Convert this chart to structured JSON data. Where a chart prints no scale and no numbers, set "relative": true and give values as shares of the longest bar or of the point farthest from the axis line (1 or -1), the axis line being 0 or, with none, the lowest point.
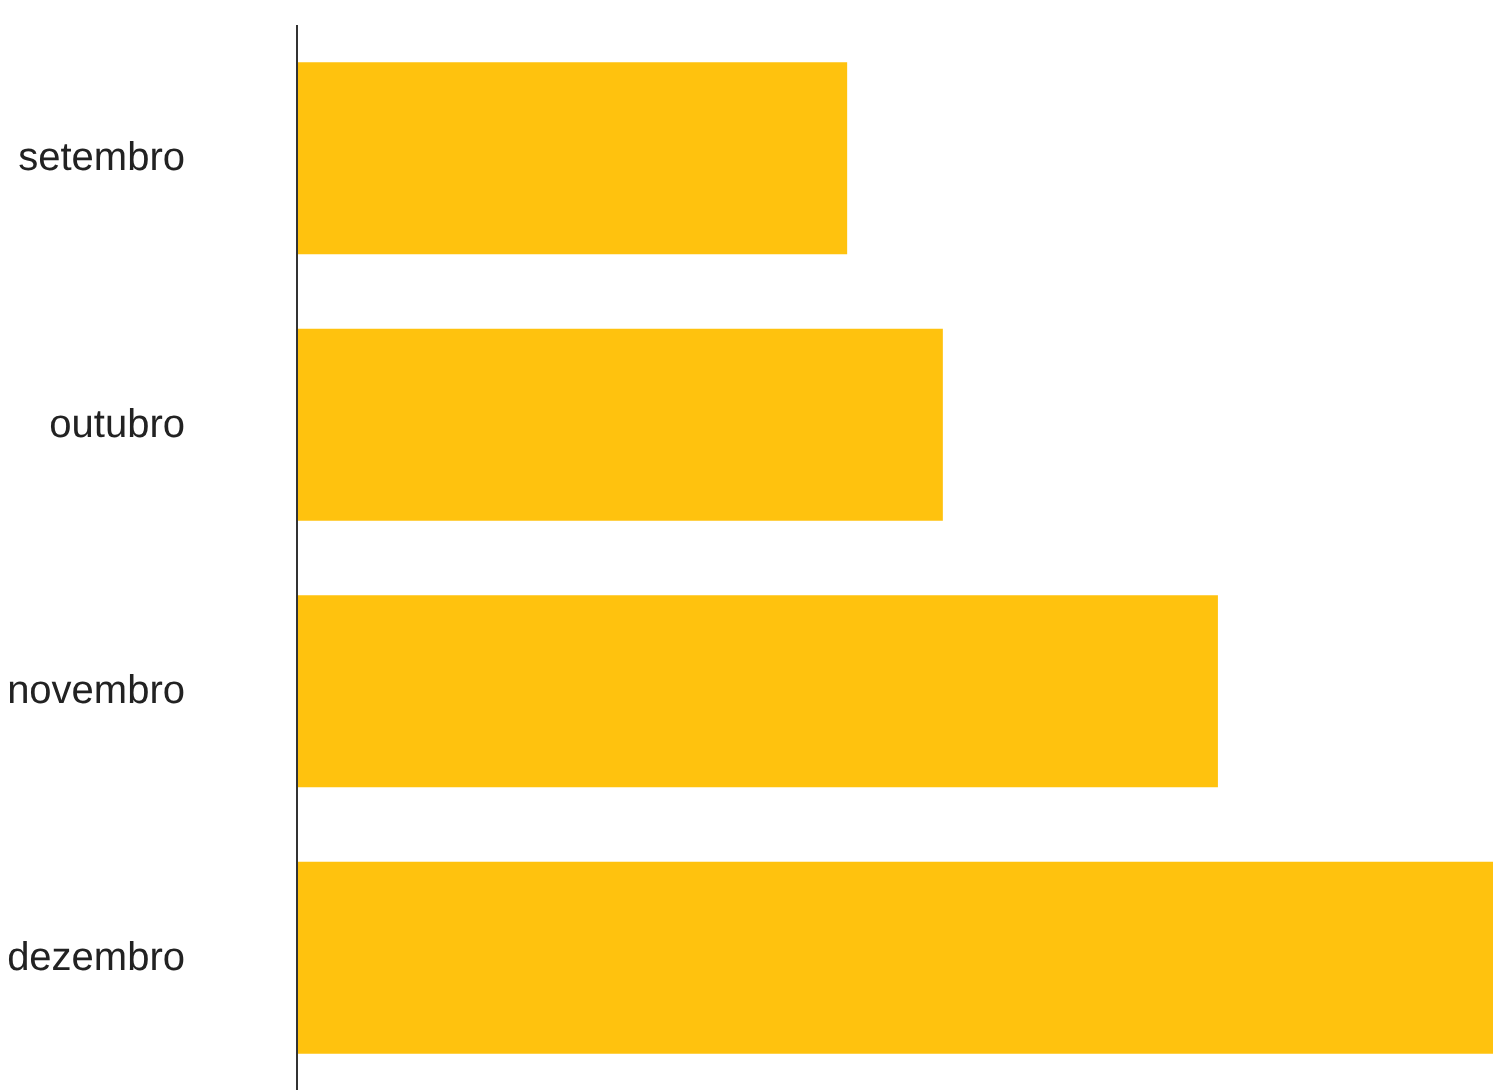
{
  "chart_data": {
    "type": "bar",
    "orientation": "horizontal",
    "relative": true,
    "categories": [
      "setembro",
      "outubro",
      "novembro",
      "dezembro"
    ],
    "values": [
      0.46,
      0.54,
      0.77,
      1
    ],
    "color": "#ffc20e",
    "grid": false
  }
}
